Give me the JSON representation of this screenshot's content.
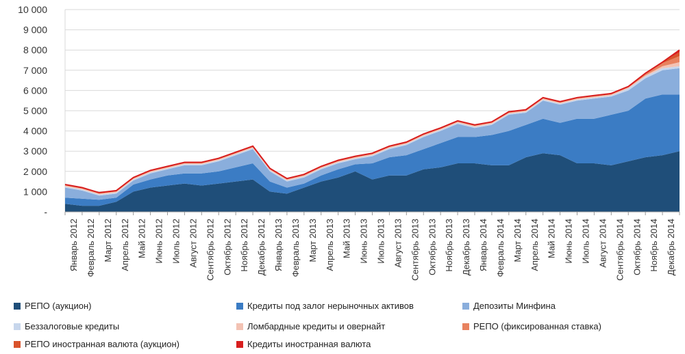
{
  "colors": {
    "repo_auction": "#1f4e79",
    "credits_nonmarket": "#3b7cc4",
    "deposits_minfin": "#8aaedc",
    "unsecured": "#c7d6ec",
    "lombard": "#f3c2b3",
    "repo_fixed": "#e8825f",
    "repo_fx": "#d9532b",
    "credits_fx": "#d81e1e",
    "grid": "#d9d9d9",
    "axis_text": "#333333"
  },
  "chart_data": {
    "type": "area",
    "stacked": true,
    "ylim": [
      0,
      10000
    ],
    "yticks": [
      "-",
      "1 000",
      "2 000",
      "3 000",
      "4 000",
      "5 000",
      "6 000",
      "7 000",
      "8 000",
      "9 000",
      "10 000"
    ],
    "categories": [
      "Январь 2012",
      "Февраль 2012",
      "Март 2012",
      "Апрель 2012",
      "Май 2012",
      "Июнь 2012",
      "Июль 2012",
      "Август 2012",
      "Сентябрь 2012",
      "Октябрь 2012",
      "Ноябрь 2012",
      "Декабрь 2012",
      "Январь 2013",
      "Февраль 2013",
      "Март 2013",
      "Апрель 2013",
      "Май 2013",
      "Июнь 2013",
      "Июль 2013",
      "Август 2013",
      "Сентябрь 2013",
      "Октябрь 2013",
      "Ноябрь 2013",
      "Декабрь 2013",
      "Январь 2014",
      "Февраль 2014",
      "Март 2014",
      "Апрель 2014",
      "Май 2014",
      "Июнь 2014",
      "Июль 2014",
      "Август 2014",
      "Сентябрь 2014",
      "Октябрь 2014",
      "Ноябрь 2014",
      "Декабрь 2014",
      ""
    ],
    "series": [
      {
        "name": "РЕПО (аукцион)",
        "color_key": "repo_auction",
        "values": [
          400,
          300,
          300,
          500,
          1000,
          1200,
          1300,
          1400,
          1300,
          1400,
          1500,
          1600,
          1000,
          900,
          1200,
          1500,
          1700,
          2000,
          1600,
          1800,
          1800,
          2100,
          2200,
          2400,
          2400,
          2300,
          2300,
          2700,
          2900,
          2800,
          2400,
          2400,
          2300,
          2500,
          2700,
          2800,
          3000
        ]
      },
      {
        "name": "Кредиты под залог нерыночных активов",
        "color_key": "credits_nonmarket",
        "values": [
          300,
          350,
          300,
          200,
          350,
          400,
          500,
          500,
          600,
          600,
          700,
          800,
          500,
          300,
          200,
          300,
          400,
          350,
          800,
          900,
          1000,
          1000,
          1200,
          1300,
          1300,
          1500,
          1700,
          1600,
          1700,
          1600,
          2200,
          2200,
          2500,
          2500,
          2900,
          3000,
          2800
        ]
      },
      {
        "name": "Депозиты Минфина",
        "color_key": "deposits_minfin",
        "values": [
          500,
          400,
          200,
          200,
          200,
          300,
          300,
          400,
          400,
          500,
          600,
          700,
          500,
          300,
          300,
          300,
          300,
          250,
          350,
          400,
          500,
          600,
          600,
          650,
          450,
          500,
          800,
          600,
          900,
          900,
          900,
          1000,
          900,
          1000,
          1000,
          1200,
          1300
        ]
      },
      {
        "name": "Беззалоговые кредиты",
        "color_key": "unsecured",
        "values": [
          50,
          50,
          50,
          50,
          50,
          50,
          50,
          50,
          50,
          50,
          50,
          50,
          50,
          50,
          50,
          50,
          50,
          50,
          50,
          50,
          50,
          50,
          50,
          50,
          50,
          50,
          50,
          50,
          50,
          50,
          50,
          50,
          50,
          100,
          100,
          100,
          100
        ]
      },
      {
        "name": "Ломбардные кредиты и овернайт",
        "color_key": "lombard",
        "values": [
          50,
          50,
          50,
          50,
          50,
          50,
          50,
          50,
          50,
          50,
          50,
          50,
          50,
          50,
          50,
          50,
          50,
          50,
          50,
          50,
          50,
          50,
          50,
          50,
          50,
          50,
          50,
          50,
          50,
          50,
          50,
          50,
          50,
          50,
          50,
          100,
          200
        ]
      },
      {
        "name": "РЕПО (фиксированная ставка)",
        "color_key": "repo_fixed",
        "values": [
          50,
          50,
          50,
          50,
          50,
          50,
          50,
          50,
          50,
          50,
          50,
          50,
          50,
          50,
          50,
          50,
          50,
          50,
          50,
          50,
          50,
          50,
          50,
          50,
          50,
          50,
          50,
          50,
          50,
          50,
          50,
          50,
          50,
          50,
          100,
          150,
          300
        ]
      },
      {
        "name": "РЕПО иностранная валюта (аукцион)",
        "color_key": "repo_fx",
        "values": [
          0,
          0,
          0,
          0,
          0,
          0,
          0,
          0,
          0,
          0,
          0,
          0,
          0,
          0,
          0,
          0,
          0,
          0,
          0,
          0,
          0,
          0,
          0,
          0,
          0,
          0,
          0,
          0,
          0,
          0,
          0,
          0,
          0,
          0,
          0,
          50,
          200
        ]
      },
      {
        "name": "Кредиты иностранная валюта",
        "color_key": "credits_fx",
        "values": [
          0,
          0,
          0,
          0,
          0,
          0,
          0,
          0,
          0,
          0,
          0,
          0,
          0,
          0,
          0,
          0,
          0,
          0,
          0,
          0,
          0,
          0,
          0,
          0,
          0,
          0,
          0,
          0,
          0,
          0,
          0,
          0,
          0,
          0,
          0,
          0,
          100
        ]
      }
    ],
    "total_line_color_key": "credits_fx"
  },
  "legend": [
    {
      "label": "РЕПО (аукцион)",
      "color_key": "repo_auction"
    },
    {
      "label": "Кредиты под залог нерыночных активов",
      "color_key": "credits_nonmarket"
    },
    {
      "label": "Депозиты Минфина",
      "color_key": "deposits_minfin"
    },
    {
      "label": "Беззалоговые кредиты",
      "color_key": "unsecured"
    },
    {
      "label": "Ломбардные кредиты и овернайт",
      "color_key": "lombard"
    },
    {
      "label": "РЕПО (фиксированная ставка)",
      "color_key": "repo_fixed"
    },
    {
      "label": "РЕПО иностранная валюта (аукцион)",
      "color_key": "repo_fx"
    },
    {
      "label": "Кредиты иностранная валюта",
      "color_key": "credits_fx"
    }
  ]
}
